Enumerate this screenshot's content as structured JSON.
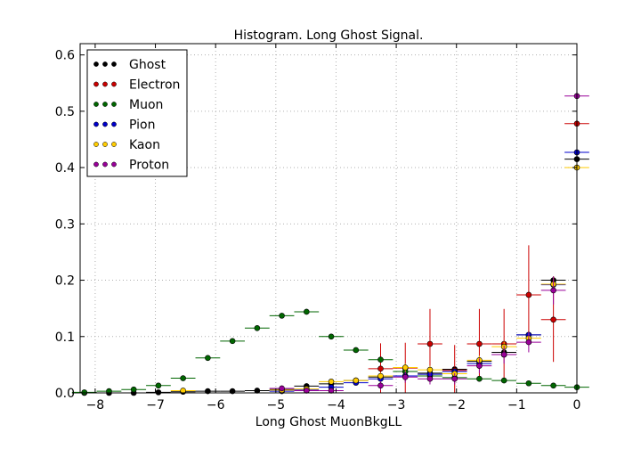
{
  "chart_data": {
    "type": "scatter",
    "title": "Histogram. Long Ghost Signal.",
    "xlabel": "Long Ghost MuonBkgLL",
    "ylabel": "",
    "xlim": [
      -8.25,
      0.0
    ],
    "ylim": [
      0.0,
      0.62
    ],
    "xticks": [
      "−8",
      "−7",
      "−6",
      "−5",
      "−4",
      "−3",
      "−2",
      "−1",
      "0"
    ],
    "xtick_values": [
      -8,
      -7,
      -6,
      -5,
      -4,
      -3,
      -2,
      -1,
      0
    ],
    "yticks": [
      "0.0",
      "0.1",
      "0.2",
      "0.3",
      "0.4",
      "0.5",
      "0.6"
    ],
    "ytick_values": [
      0.0,
      0.1,
      0.2,
      0.3,
      0.4,
      0.5,
      0.6
    ],
    "grid": true,
    "legend_position": "top-left",
    "bins": [
      -8.18,
      -7.77,
      -7.36,
      -6.95,
      -6.54,
      -6.13,
      -5.72,
      -5.31,
      -4.9,
      -4.49,
      -4.08,
      -3.67,
      -3.26,
      -2.85,
      -2.44,
      -2.03,
      -1.62,
      -1.21,
      -0.8,
      -0.39,
      -0.0
    ],
    "series": [
      {
        "name": "Ghost",
        "color": "#000000",
        "values": [
          0.0,
          0.0,
          0.0,
          0.001,
          0.002,
          0.003,
          0.003,
          0.004,
          0.006,
          0.012,
          0.016,
          0.022,
          0.028,
          0.03,
          0.035,
          0.042,
          0.056,
          0.072,
          0.103,
          0.2,
          0.415
        ],
        "errors": [
          0,
          0,
          0,
          0,
          0,
          0,
          0,
          0,
          0.001,
          0.002,
          0.002,
          0.002,
          0.003,
          0.003,
          0.003,
          0.003,
          0.004,
          0.004,
          0.005,
          0.007,
          0.01
        ]
      },
      {
        "name": "Electron",
        "color": "#cc0000",
        "values": [
          null,
          null,
          null,
          null,
          null,
          null,
          null,
          null,
          null,
          null,
          null,
          null,
          0.043,
          0.044,
          0.087,
          0.04,
          0.087,
          0.087,
          0.174,
          0.13,
          0.478
        ],
        "errors": [
          0,
          0,
          0,
          0,
          0,
          0,
          0,
          0,
          0,
          0,
          0,
          0,
          0.045,
          0.045,
          0.062,
          0.045,
          0.062,
          0.062,
          0.088,
          0.075,
          0.145
        ]
      },
      {
        "name": "Muon",
        "color": "#006600",
        "values": [
          0.001,
          0.003,
          0.006,
          0.013,
          0.026,
          0.062,
          0.092,
          0.115,
          0.137,
          0.144,
          0.1,
          0.076,
          0.059,
          0.038,
          0.03,
          0.027,
          0.025,
          0.022,
          0.017,
          0.013,
          0.01
        ],
        "errors": [
          0.001,
          0.001,
          0.002,
          0.002,
          0.003,
          0.004,
          0.004,
          0.005,
          0.005,
          0.005,
          0.004,
          0.004,
          0.003,
          0.003,
          0.003,
          0.002,
          0.002,
          0.002,
          0.002,
          0.002,
          0.002
        ]
      },
      {
        "name": "Pion",
        "color": "#0000cc",
        "values": [
          null,
          null,
          null,
          null,
          null,
          null,
          null,
          null,
          0.003,
          0.006,
          0.01,
          0.018,
          0.025,
          0.03,
          0.033,
          0.038,
          0.052,
          0.068,
          0.103,
          0.192,
          0.427
        ],
        "errors": [
          0,
          0,
          0,
          0,
          0,
          0,
          0,
          0,
          0.001,
          0.001,
          0.002,
          0.002,
          0.003,
          0.003,
          0.003,
          0.003,
          0.004,
          0.004,
          0.005,
          0.007,
          0.01
        ]
      },
      {
        "name": "Kaon",
        "color": "#ffcc00",
        "values": [
          null,
          null,
          null,
          null,
          0.004,
          null,
          null,
          null,
          0.005,
          0.007,
          0.02,
          0.022,
          0.03,
          0.045,
          0.041,
          0.034,
          0.058,
          0.082,
          0.097,
          0.193,
          0.4
        ],
        "errors": [
          0,
          0,
          0,
          0,
          0.002,
          0,
          0,
          0,
          0.002,
          0.003,
          0.005,
          0.005,
          0.006,
          0.007,
          0.007,
          0.006,
          0.008,
          0.009,
          0.01,
          0.014,
          0.02
        ]
      },
      {
        "name": "Proton",
        "color": "#990099",
        "values": [
          null,
          null,
          null,
          null,
          null,
          null,
          null,
          null,
          0.008,
          0.004,
          0.004,
          null,
          0.013,
          0.028,
          0.025,
          0.025,
          0.048,
          0.068,
          0.09,
          0.182,
          0.527
        ],
        "errors": [
          0,
          0,
          0,
          0,
          0,
          0,
          0,
          0,
          0.005,
          0.004,
          0.004,
          0,
          0.008,
          0.01,
          0.01,
          0.01,
          0.013,
          0.016,
          0.018,
          0.025,
          0.04
        ]
      }
    ]
  }
}
